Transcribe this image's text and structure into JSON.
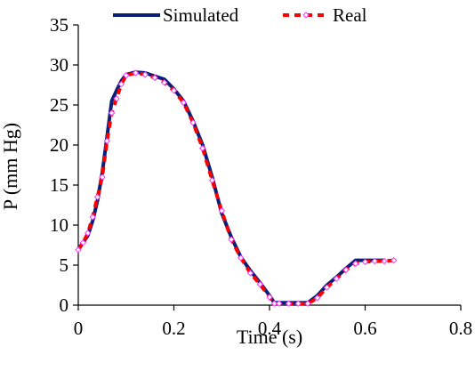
{
  "chart_data": {
    "type": "line",
    "title": "",
    "xlabel": "Time (s)",
    "ylabel": "P (mm Hg)",
    "xlim": [
      0,
      0.8
    ],
    "ylim": [
      0,
      35
    ],
    "x_ticks": [
      0,
      0.2,
      0.4,
      0.6,
      0.8
    ],
    "x_tick_labels": [
      "0",
      "0.2",
      "0.4",
      "0.6",
      "0.8"
    ],
    "y_ticks": [
      0,
      5,
      10,
      15,
      20,
      25,
      30,
      35
    ],
    "y_tick_labels": [
      "0",
      "5",
      "10",
      "15",
      "20",
      "25",
      "30",
      "35"
    ],
    "grid": false,
    "legend_position": "top",
    "series": [
      {
        "name": "Simulated",
        "style": "solid",
        "color": "#0a1f7a",
        "x": [
          0.0,
          0.01,
          0.02,
          0.03,
          0.04,
          0.05,
          0.06,
          0.07,
          0.08,
          0.09,
          0.1,
          0.12,
          0.14,
          0.16,
          0.18,
          0.2,
          0.22,
          0.24,
          0.26,
          0.28,
          0.3,
          0.32,
          0.34,
          0.36,
          0.38,
          0.4,
          0.41,
          0.42,
          0.44,
          0.46,
          0.48,
          0.5,
          0.52,
          0.54,
          0.56,
          0.58,
          0.6,
          0.62,
          0.64
        ],
        "y": [
          7.0,
          7.8,
          8.7,
          10.5,
          13.0,
          16.5,
          21.0,
          25.5,
          26.8,
          28.0,
          28.8,
          29.1,
          29.0,
          28.6,
          28.2,
          27.0,
          25.5,
          23.0,
          20.0,
          16.0,
          11.5,
          8.5,
          6.0,
          4.3,
          2.8,
          1.2,
          0.3,
          0.3,
          0.3,
          0.3,
          0.3,
          1.2,
          2.5,
          3.5,
          4.6,
          5.6,
          5.6,
          5.6,
          5.6
        ]
      },
      {
        "name": "Real",
        "style": "dashed",
        "color": "#ff0000",
        "marker_color": "#ff33ff",
        "x": [
          0.0,
          0.01,
          0.02,
          0.03,
          0.04,
          0.05,
          0.06,
          0.07,
          0.08,
          0.09,
          0.1,
          0.12,
          0.14,
          0.16,
          0.18,
          0.2,
          0.22,
          0.24,
          0.26,
          0.28,
          0.3,
          0.32,
          0.34,
          0.36,
          0.38,
          0.4,
          0.41,
          0.42,
          0.44,
          0.46,
          0.48,
          0.5,
          0.52,
          0.54,
          0.56,
          0.58,
          0.6,
          0.62,
          0.64,
          0.66
        ],
        "y": [
          6.9,
          7.8,
          9.0,
          11.0,
          13.5,
          16.0,
          20.5,
          24.0,
          25.8,
          27.6,
          28.7,
          29.0,
          28.8,
          28.4,
          27.8,
          26.8,
          25.3,
          22.8,
          19.6,
          15.6,
          11.8,
          8.2,
          5.9,
          4.0,
          2.6,
          1.0,
          0.2,
          0.2,
          0.2,
          0.2,
          0.2,
          0.9,
          2.2,
          3.3,
          4.4,
          5.2,
          5.4,
          5.5,
          5.5,
          5.6
        ]
      }
    ]
  }
}
